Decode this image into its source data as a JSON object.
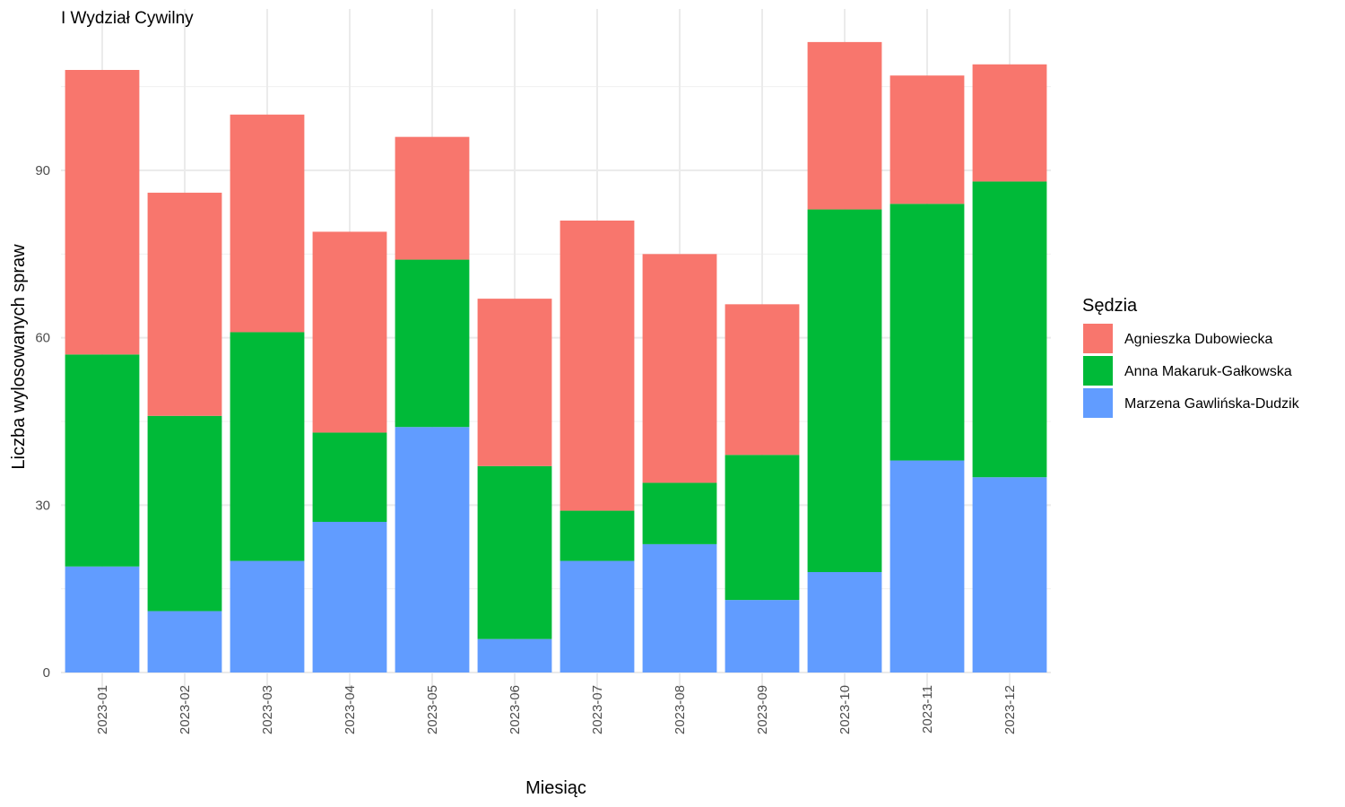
{
  "chart_data": {
    "type": "bar",
    "stacked": true,
    "title": "I Wydział Cywilny",
    "xlabel": "Miesiąc",
    "ylabel": "Liczba wylosowanych spraw",
    "ylim": [
      0,
      113
    ],
    "yticks": [
      0,
      30,
      60,
      90
    ],
    "grid": true,
    "legend_title": "Sędzia",
    "legend_position": "right",
    "categories": [
      "2023-01",
      "2023-02",
      "2023-03",
      "2023-04",
      "2023-05",
      "2023-06",
      "2023-07",
      "2023-08",
      "2023-09",
      "2023-10",
      "2023-11",
      "2023-12"
    ],
    "series": [
      {
        "name": "Marzena Gawlińska-Dudzik",
        "color": "#619CFF",
        "values": [
          19,
          11,
          20,
          27,
          44,
          6,
          20,
          23,
          13,
          18,
          38,
          35
        ]
      },
      {
        "name": "Anna Makaruk-Gałkowska",
        "color": "#00BA38",
        "values": [
          38,
          35,
          41,
          16,
          30,
          31,
          9,
          11,
          26,
          65,
          46,
          53
        ]
      },
      {
        "name": "Agnieszka Dubowiecka",
        "color": "#F8766D",
        "values": [
          51,
          40,
          39,
          36,
          22,
          30,
          52,
          41,
          27,
          30,
          23,
          21
        ]
      }
    ],
    "legend_order": [
      "Agnieszka Dubowiecka",
      "Anna Makaruk-Gałkowska",
      "Marzena Gawlińska-Dudzik"
    ]
  }
}
